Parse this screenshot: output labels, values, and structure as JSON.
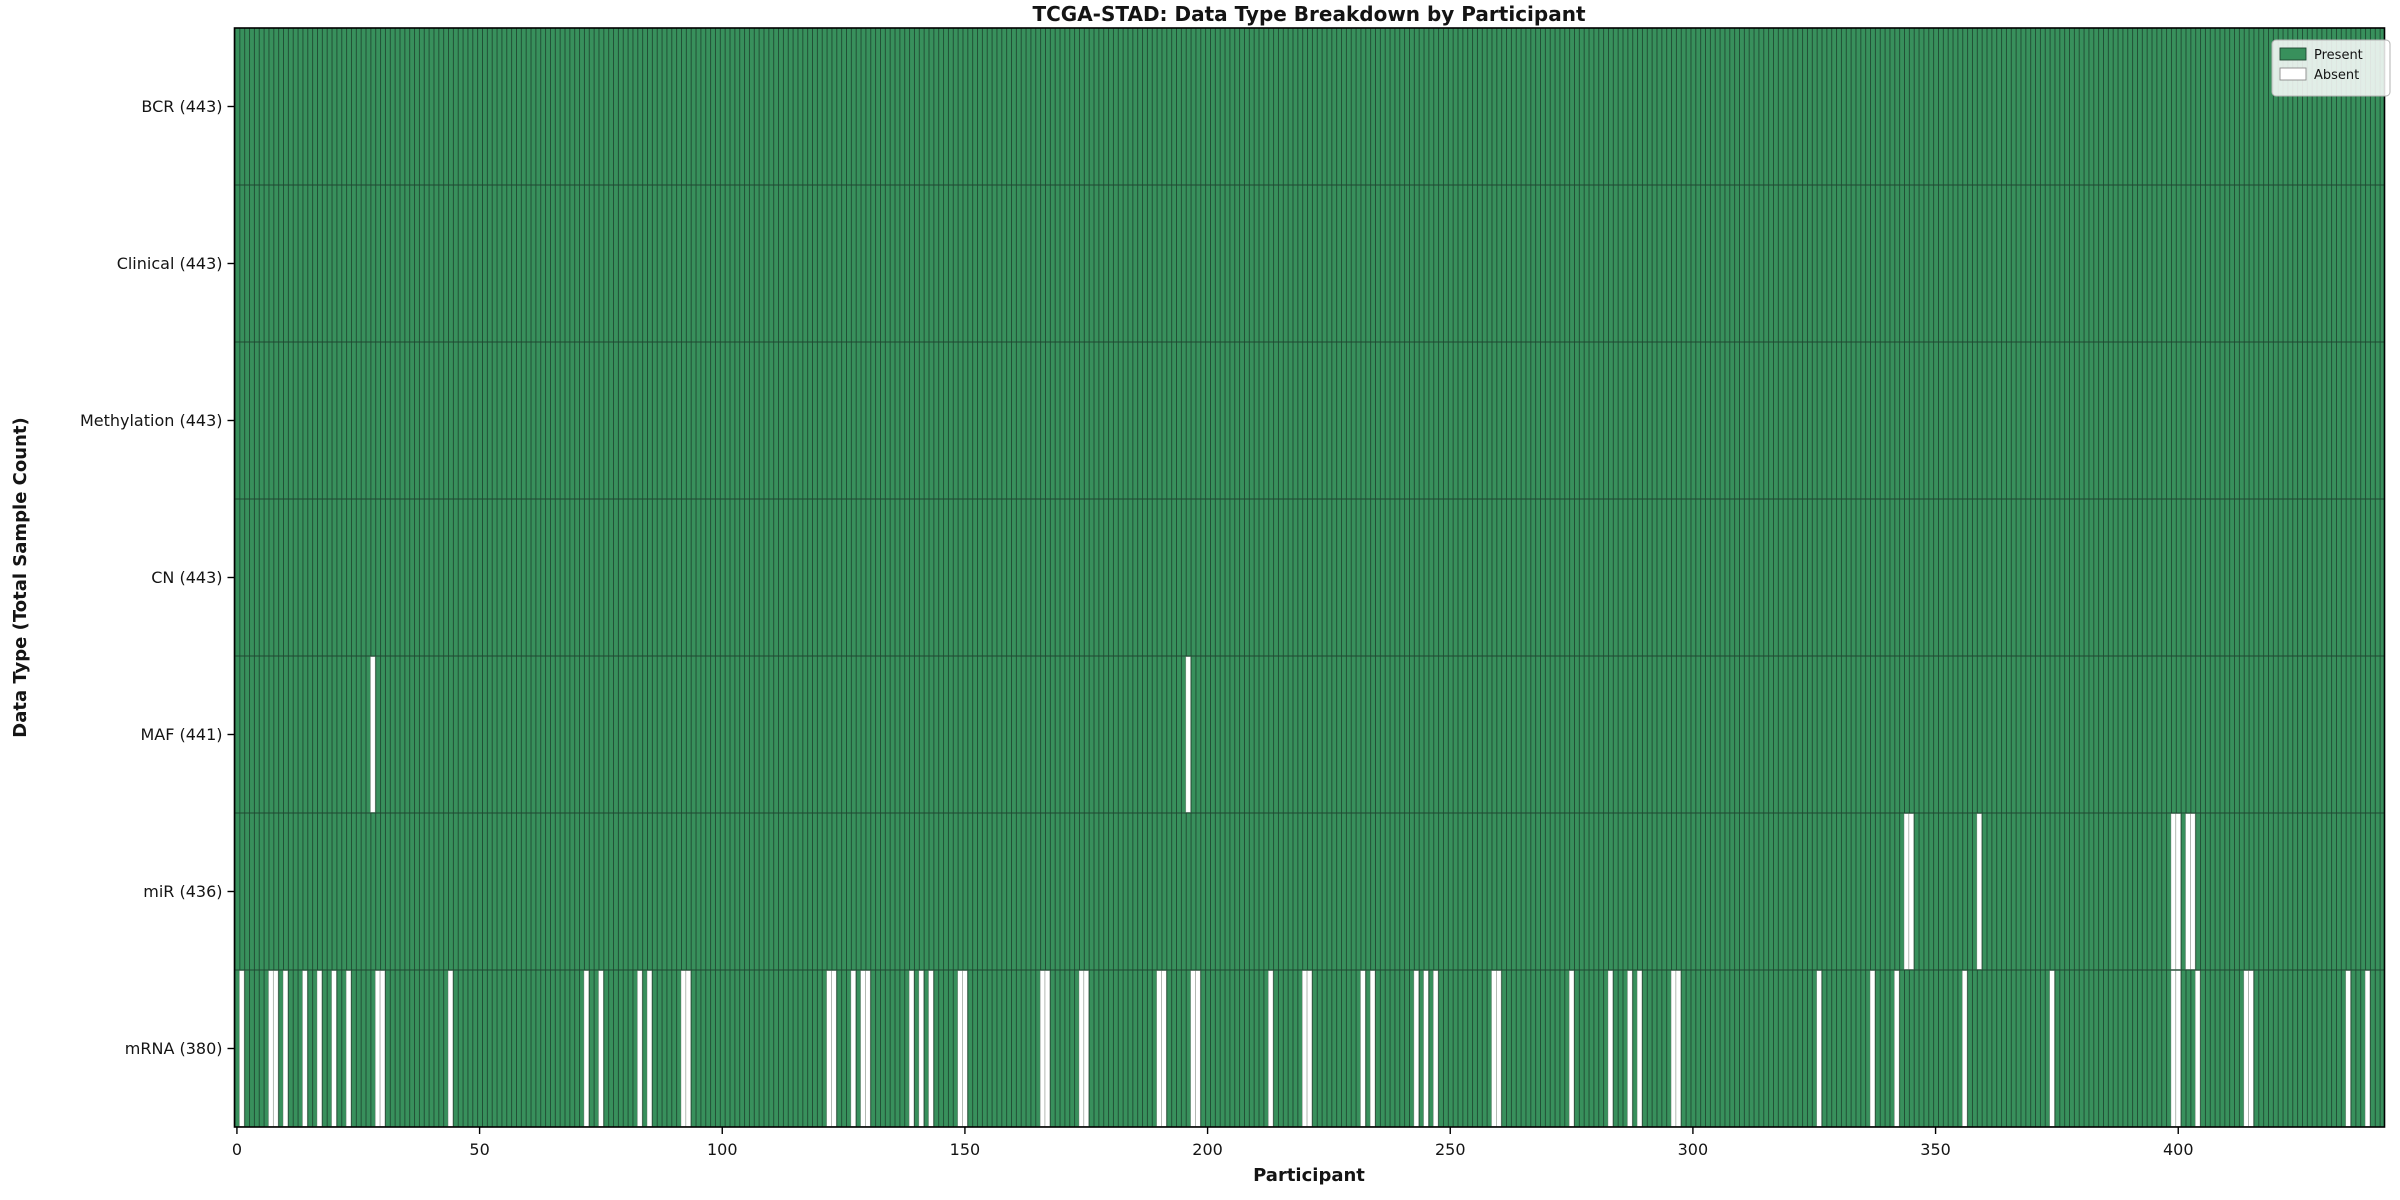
{
  "chart_data": {
    "type": "heatmap",
    "subtype": "presence-absence-matrix",
    "title": "TCGA-STAD: Data Type Breakdown by Participant",
    "xlabel": "Participant",
    "ylabel": "Data Type (Total Sample Count)",
    "n_participants": 443,
    "x_ticks": [
      0,
      50,
      100,
      150,
      200,
      250,
      300,
      350,
      400
    ],
    "x_range": [
      -0.5,
      442.5
    ],
    "grid": false,
    "legend_position": "upper right",
    "legend": [
      {
        "label": "Present",
        "color": "#38905c"
      },
      {
        "label": "Absent",
        "color": "#ffffff"
      }
    ],
    "rows": [
      {
        "name": "BCR",
        "label": "BCR (443)",
        "present_count": 443,
        "absent_participants": []
      },
      {
        "name": "Clinical",
        "label": "Clinical (443)",
        "present_count": 443,
        "absent_participants": []
      },
      {
        "name": "Methylation",
        "label": "Methylation (443)",
        "present_count": 443,
        "absent_participants": []
      },
      {
        "name": "CN",
        "label": "CN (443)",
        "present_count": 443,
        "absent_participants": []
      },
      {
        "name": "MAF",
        "label": "MAF (441)",
        "present_count": 441,
        "absent_participants": [
          28,
          196
        ]
      },
      {
        "name": "miR",
        "label": "miR (436)",
        "present_count": 436,
        "absent_participants": [
          344,
          345,
          359,
          399,
          400,
          402,
          403
        ]
      },
      {
        "name": "mRNA",
        "label": "mRNA (380)",
        "present_count": 380,
        "absent_participants": [
          1,
          7,
          8,
          10,
          14,
          17,
          20,
          23,
          29,
          30,
          44,
          72,
          75,
          83,
          85,
          92,
          93,
          122,
          123,
          127,
          129,
          130,
          139,
          141,
          143,
          149,
          150,
          166,
          167,
          174,
          175,
          190,
          191,
          197,
          198,
          213,
          220,
          221,
          232,
          234,
          243,
          245,
          247,
          259,
          260,
          275,
          283,
          287,
          289,
          296,
          297,
          326,
          337,
          342,
          356,
          374,
          399,
          400,
          404,
          414,
          415,
          435,
          439
        ]
      }
    ],
    "colors": {
      "present": "#38905c",
      "absent": "#ffffff",
      "bar_edge": "#1e4630",
      "spine": "#000000",
      "text": "#141414",
      "legend_border": "#b3b3b3",
      "legend_bg": "rgba(255,255,255,0.85)"
    }
  }
}
